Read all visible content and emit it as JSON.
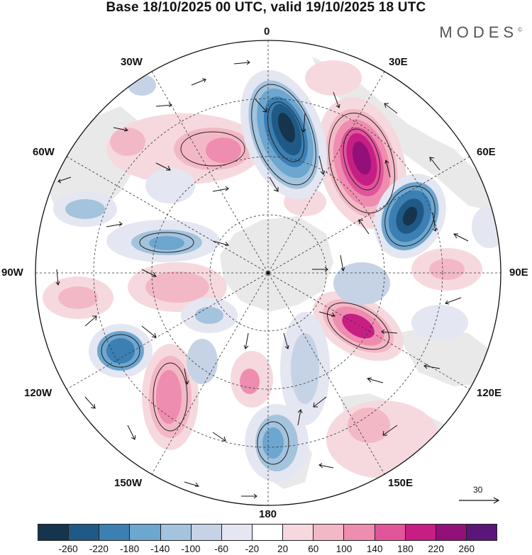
{
  "title": "Base 18/10/2025 00 UTC, valid 19/10/2025 18 UTC",
  "brand": "MODES",
  "brand_mark": "©",
  "longitude_labels": {
    "lon_0": "0",
    "lon_30e": "30E",
    "lon_60e": "60E",
    "lon_90e": "90E",
    "lon_120e": "120E",
    "lon_150e": "150E",
    "lon_180": "180",
    "lon_150w": "150W",
    "lon_120w": "120W",
    "lon_90w": "90W",
    "lon_60w": "60W",
    "lon_30w": "30W"
  },
  "vector_scale_label": "30",
  "colorbar": {
    "colors": [
      "#17344f",
      "#1f5a86",
      "#3c7fb2",
      "#6da6cf",
      "#a4c3dd",
      "#c6d3e6",
      "#e4e6f2",
      "#ffffff",
      "#f6d9de",
      "#f3b8c6",
      "#ee8db0",
      "#e2559a",
      "#c71e84",
      "#93107a",
      "#5a1678"
    ],
    "ticks": [
      "-260",
      "-220",
      "-180",
      "-140",
      "-100",
      "-60",
      "-20",
      "20",
      "60",
      "100",
      "140",
      "180",
      "220",
      "260"
    ]
  },
  "map_colors": {
    "land": "#e9e9e9",
    "background": "#ffffff"
  }
}
